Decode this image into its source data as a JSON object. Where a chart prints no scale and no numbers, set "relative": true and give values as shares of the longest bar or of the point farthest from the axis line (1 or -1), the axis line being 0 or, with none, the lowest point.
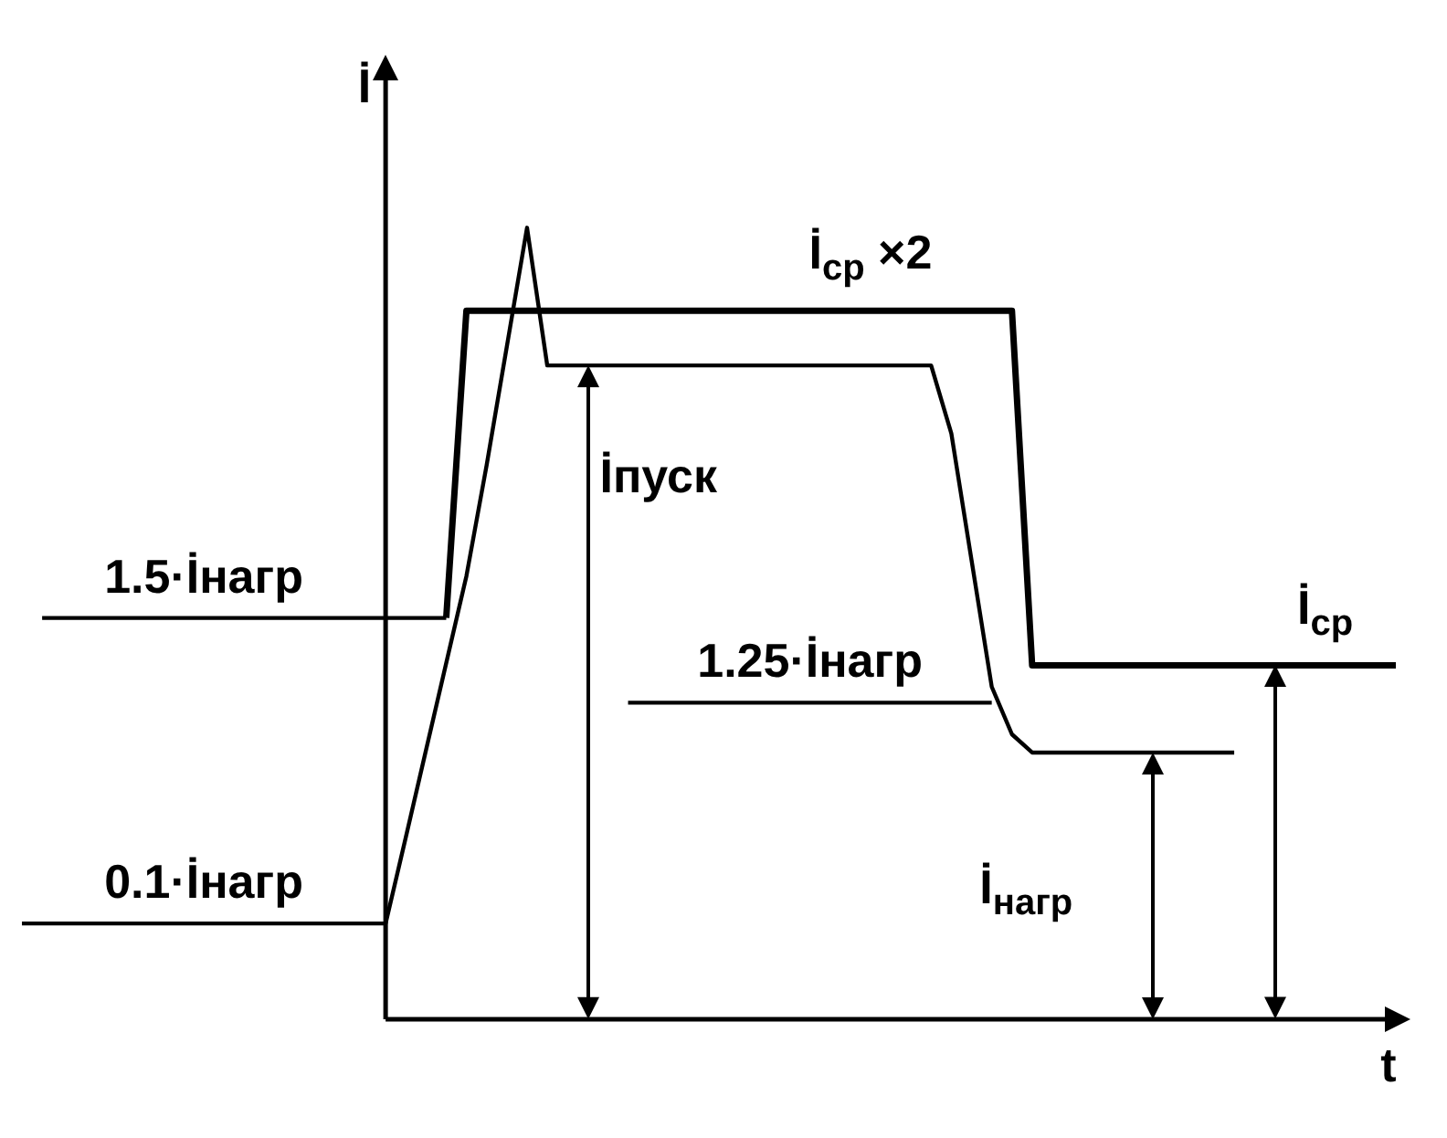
{
  "chart_data": {
    "type": "line",
    "relative": true,
    "xlabel": "t",
    "ylabel": "İ",
    "legend": false,
    "line_style": "solid",
    "marker": "none",
    "categories": [
      null,
      null,
      null,
      null,
      null,
      null,
      null,
      null,
      null,
      null,
      null,
      null,
      null,
      null,
      null,
      null,
      null,
      null,
      null,
      null,
      null,
      null,
      null,
      null,
      null,
      null,
      null,
      null,
      null,
      null,
      null,
      null,
      null,
      null,
      null,
      null,
      null,
      null,
      null,
      null,
      null,
      null,
      null,
      null,
      null,
      null,
      null,
      null,
      null,
      null,
      null,
      null,
      null,
      null,
      null,
      null,
      null,
      null,
      null,
      null,
      null,
      null,
      null,
      null,
      null,
      null,
      null,
      null,
      null
    ],
    "series": [
      {
        "color": "#000000",
        "values": [
          null,
          null,
          null,
          null,
          null,
          null,
          null,
          null,
          null,
          null,
          null,
          null,
          null,
          null,
          null,
          null,
          null,
          null,
          0.121,
          0.23,
          0.34,
          0.45,
          0.56,
          0.7,
          0.85,
          1,
          0.826,
          0.826,
          0.826,
          0.826,
          0.826,
          0.826,
          0.826,
          0.826,
          0.826,
          0.826,
          0.826,
          0.826,
          0.826,
          0.826,
          0.826,
          0.826,
          0.826,
          0.826,
          0.826,
          0.826,
          0.74,
          0.58,
          0.42,
          0.36,
          0.337,
          0.337,
          0.337,
          0.337,
          0.337,
          0.337,
          0.337,
          0.337,
          0.337,
          0.337,
          0.337,
          null,
          null,
          null,
          null,
          null,
          null,
          null,
          null
        ]
      },
      {
        "color": "#000000",
        "values": [
          null,
          null,
          null,
          null,
          null,
          null,
          null,
          null,
          null,
          null,
          null,
          null,
          null,
          null,
          null,
          null,
          null,
          null,
          null,
          null,
          null,
          0.507,
          0.895,
          0.895,
          0.895,
          0.895,
          0.895,
          0.895,
          0.895,
          0.895,
          0.895,
          0.895,
          0.895,
          0.895,
          0.895,
          0.895,
          0.895,
          0.895,
          0.895,
          0.895,
          0.895,
          0.895,
          0.895,
          0.895,
          0.895,
          0.895,
          0.895,
          0.895,
          0.895,
          0.895,
          0.447,
          0.447,
          0.447,
          0.447,
          0.447,
          0.447,
          0.447,
          0.447,
          0.447,
          0.447,
          0.447,
          0.447,
          0.447,
          0.447,
          0.447,
          0.447,
          0.447,
          0.447,
          0.447
        ]
      },
      {
        "color": "#000000",
        "values": [
          null,
          0.507,
          0.507,
          0.507,
          0.507,
          0.507,
          0.507,
          0.507,
          0.507,
          0.507,
          0.507,
          0.507,
          0.507,
          0.507,
          0.507,
          0.507,
          0.507,
          0.507,
          0.507,
          0.507,
          0.507,
          0.507,
          null,
          null,
          null,
          null,
          null,
          null,
          null,
          null,
          null,
          null,
          null,
          null,
          null,
          null,
          null,
          null,
          null,
          null,
          null,
          null,
          null,
          null,
          null,
          null,
          null,
          null,
          null,
          null,
          null,
          null,
          null,
          null,
          null,
          null,
          null,
          null,
          null,
          null,
          null,
          null,
          null,
          null,
          null,
          null,
          null,
          null,
          null
        ]
      },
      {
        "color": "#000000",
        "values": [
          0.121,
          0.121,
          0.121,
          0.121,
          0.121,
          0.121,
          0.121,
          0.121,
          0.121,
          0.121,
          0.121,
          0.121,
          0.121,
          0.121,
          0.121,
          0.121,
          0.121,
          0.121,
          0.121,
          null,
          null,
          null,
          null,
          null,
          null,
          null,
          null,
          null,
          null,
          null,
          null,
          null,
          null,
          null,
          null,
          null,
          null,
          null,
          null,
          null,
          null,
          null,
          null,
          null,
          null,
          null,
          null,
          null,
          null,
          null,
          null,
          null,
          null,
          null,
          null,
          null,
          null,
          null,
          null,
          null,
          null,
          null,
          null,
          null,
          null,
          null,
          null,
          null,
          null
        ]
      },
      {
        "color": "#000000",
        "values": [
          null,
          null,
          null,
          null,
          null,
          null,
          null,
          null,
          null,
          null,
          null,
          null,
          null,
          null,
          null,
          null,
          null,
          null,
          null,
          null,
          null,
          null,
          null,
          null,
          null,
          null,
          null,
          null,
          null,
          null,
          0.4,
          0.4,
          0.4,
          0.4,
          0.4,
          0.4,
          0.4,
          0.4,
          0.4,
          0.4,
          0.4,
          0.4,
          0.4,
          0.4,
          0.4,
          0.4,
          0.4,
          0.4,
          0.4,
          null,
          null,
          null,
          null,
          null,
          null,
          null,
          null,
          null,
          null,
          null,
          null,
          null,
          null,
          null,
          null,
          null,
          null,
          null,
          null
        ]
      }
    ],
    "annotations": [
      "1.5·İнагр",
      "0.1·İнагр",
      "1.25·İнагр",
      "İпуск",
      "İ$_{нагр}$",
      "İ$_{ср}$",
      "İ$_{ср}$ ×2"
    ]
  }
}
